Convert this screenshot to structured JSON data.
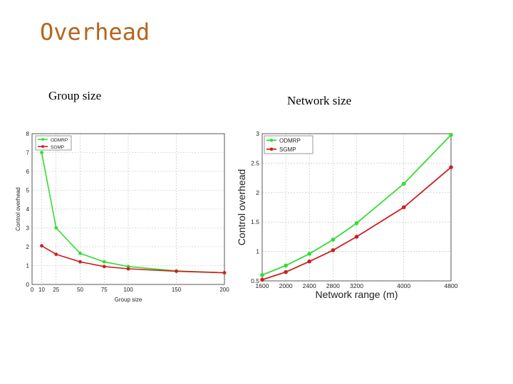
{
  "title": "Overhead",
  "captions": {
    "left": "Group size",
    "right": "Network size"
  },
  "colors": {
    "odmrp": "#33dd33",
    "sgmp": "#cc1f1f",
    "title": "#b5651d"
  },
  "chart_data": [
    {
      "type": "line",
      "xlabel": "Group size",
      "ylabel": "Control overhead",
      "xlim": [
        0,
        200
      ],
      "ylim": [
        0,
        8
      ],
      "xticks": [
        0,
        10,
        25,
        50,
        75,
        100,
        150,
        200
      ],
      "yticks": [
        0,
        1,
        2,
        3,
        4,
        5,
        6,
        7,
        8
      ],
      "grid": true,
      "legend": "top-left",
      "x": [
        10,
        25,
        50,
        75,
        100,
        150,
        200
      ],
      "series": [
        {
          "name": "ODMRP",
          "values": [
            7.0,
            3.0,
            1.65,
            1.2,
            0.95,
            0.72,
            0.62
          ]
        },
        {
          "name": "SGMP",
          "values": [
            2.05,
            1.6,
            1.2,
            0.95,
            0.83,
            0.7,
            0.62
          ]
        }
      ]
    },
    {
      "type": "line",
      "xlabel": "Network range (m)",
      "ylabel": "Control overhead",
      "xlim": [
        1600,
        4800
      ],
      "ylim": [
        0.5,
        3
      ],
      "xticks": [
        1600,
        2000,
        2400,
        2800,
        3200,
        4000,
        4800
      ],
      "yticks": [
        "0.5",
        "1",
        "1.5",
        "2",
        "2.5",
        "3"
      ],
      "grid": true,
      "legend": "top-left",
      "x": [
        1600,
        2000,
        2400,
        2800,
        3200,
        4000,
        4800
      ],
      "series": [
        {
          "name": "ODMRP",
          "values": [
            0.6,
            0.76,
            0.96,
            1.2,
            1.48,
            2.15,
            2.98
          ]
        },
        {
          "name": "SGMP",
          "values": [
            0.52,
            0.65,
            0.83,
            1.02,
            1.25,
            1.75,
            2.43
          ]
        }
      ]
    }
  ]
}
